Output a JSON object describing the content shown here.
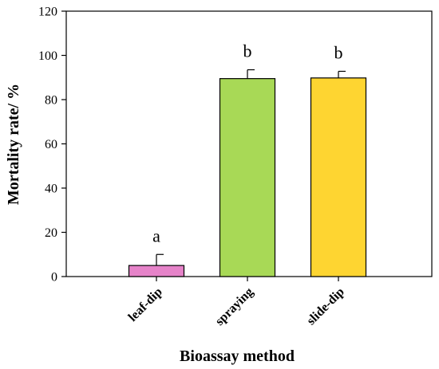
{
  "chart_data": {
    "type": "bar",
    "title": "",
    "xlabel": "Bioassay method",
    "ylabel": "Mortality rate/ %",
    "ylim": [
      0,
      120
    ],
    "yticks": [
      0,
      20,
      40,
      60,
      80,
      100,
      120
    ],
    "grid": false,
    "categories": [
      "leaf-dip",
      "spraying",
      "slide-dip"
    ],
    "values": [
      5,
      89.5,
      89.8
    ],
    "errors": [
      5,
      4,
      3
    ],
    "significance_letters": [
      "a",
      "b",
      "b"
    ],
    "colors": [
      "#E683C9",
      "#A8D956",
      "#FED531"
    ]
  }
}
